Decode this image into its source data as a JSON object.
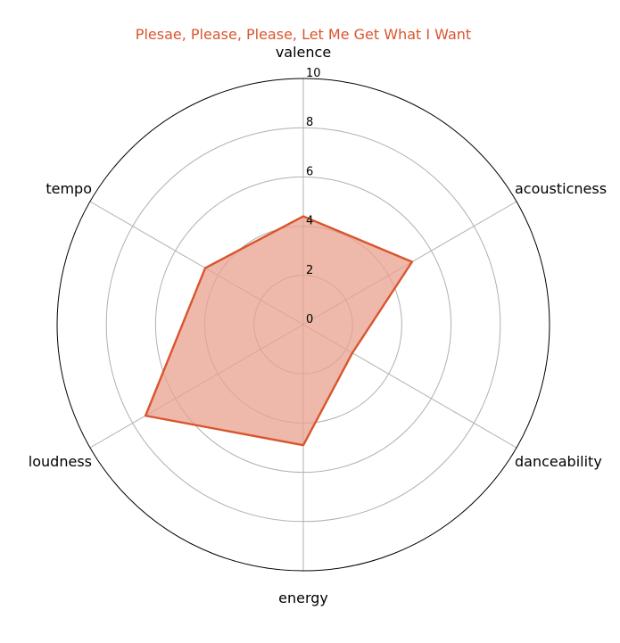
{
  "colors": {
    "title": "#d9552e",
    "series_line": "#d9552e",
    "series_fill": "#e8a28d",
    "grid": "#b0b0b0",
    "outer_circle": "#000000",
    "background": "#ffffff"
  },
  "chart_data": {
    "type": "radar",
    "title": "Plesae, Please, Please, Let Me Get What I Want",
    "axes": [
      "valence",
      "acousticness",
      "danceability",
      "energy",
      "loudness",
      "tempo"
    ],
    "ticks": [
      "0",
      "2",
      "4",
      "6",
      "8",
      "10"
    ],
    "rlim": [
      0,
      10
    ],
    "grid": true,
    "series": [
      {
        "values": [
          4.4,
          5.1,
          2.3,
          4.9,
          7.4,
          4.6
        ]
      }
    ]
  }
}
